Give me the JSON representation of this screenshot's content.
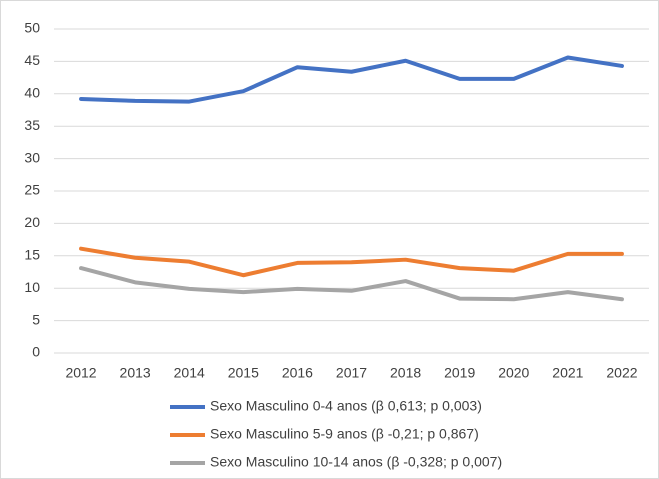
{
  "chart_data": {
    "type": "line",
    "categories": [
      "2012",
      "2013",
      "2014",
      "2015",
      "2016",
      "2017",
      "2018",
      "2019",
      "2020",
      "2021",
      "2022"
    ],
    "series": [
      {
        "name": "Sexo Masculino 0-4 anos (β 0,613; p 0,003)",
        "color": "#4472c4",
        "values": [
          39.2,
          38.9,
          38.8,
          40.4,
          44.1,
          43.4,
          45.1,
          42.3,
          42.3,
          45.6,
          44.3
        ]
      },
      {
        "name": "Sexo Masculino 5-9 anos (β -0,21; p 0,867)",
        "color": "#ed7d31",
        "values": [
          16.1,
          14.7,
          14.1,
          12.0,
          13.9,
          14.0,
          14.4,
          13.1,
          12.7,
          15.3,
          15.3
        ]
      },
      {
        "name": "Sexo Masculino 10-14 anos (β -0,328; p 0,007)",
        "color": "#a5a5a5",
        "values": [
          13.1,
          10.9,
          9.9,
          9.4,
          9.9,
          9.6,
          11.1,
          8.4,
          8.3,
          9.4,
          8.3
        ]
      }
    ],
    "ylim": [
      0,
      50
    ],
    "yticks": [
      0,
      5,
      10,
      15,
      20,
      25,
      30,
      35,
      40,
      45,
      50
    ],
    "grid": true,
    "legend": "bottom"
  }
}
